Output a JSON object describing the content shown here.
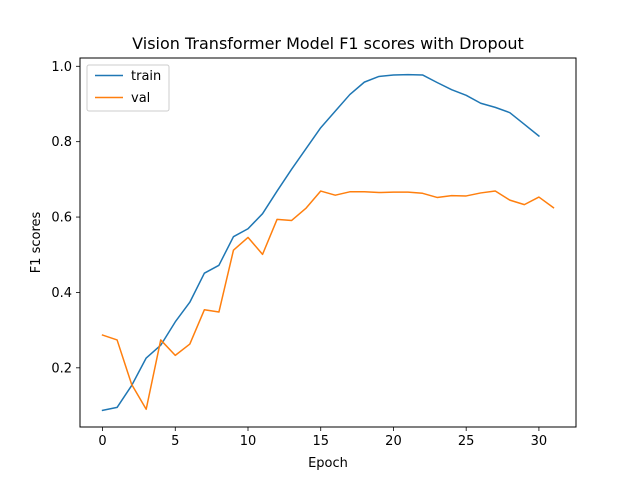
{
  "chart_data": {
    "type": "line",
    "title": "Vision Transformer Model F1 scores with Dropout",
    "xlabel": "Epoch",
    "ylabel": "F1 scores",
    "xlim": [
      -1.55,
      32.55
    ],
    "ylim": [
      0.043,
      1.022
    ],
    "xticks": [
      0,
      5,
      10,
      15,
      20,
      25,
      30
    ],
    "yticks": [
      0.2,
      0.4,
      0.6,
      0.8,
      1.0
    ],
    "ytick_labels": [
      "0.2",
      "0.4",
      "0.6",
      "0.8",
      "1.0"
    ],
    "grid": false,
    "legend": "top-left",
    "series": [
      {
        "name": "train",
        "color": "#1f77b4",
        "x": [
          0,
          1,
          2,
          3,
          4,
          5,
          6,
          7,
          8,
          9,
          10,
          11,
          12,
          13,
          14,
          15,
          16,
          17,
          18,
          19,
          20,
          21,
          22,
          23,
          24,
          25,
          26,
          27,
          28,
          29,
          30
        ],
        "values": [
          0.087,
          0.095,
          0.153,
          0.226,
          0.26,
          0.322,
          0.374,
          0.451,
          0.472,
          0.548,
          0.569,
          0.609,
          0.669,
          0.727,
          0.782,
          0.837,
          0.881,
          0.925,
          0.958,
          0.973,
          0.977,
          0.978,
          0.977,
          0.957,
          0.938,
          0.923,
          0.902,
          0.891,
          0.877,
          0.846,
          0.815
        ]
      },
      {
        "name": "val",
        "color": "#ff7f0e",
        "x": [
          0,
          1,
          2,
          3,
          4,
          5,
          6,
          7,
          8,
          9,
          10,
          11,
          12,
          13,
          14,
          15,
          16,
          17,
          18,
          19,
          20,
          21,
          22,
          23,
          24,
          25,
          26,
          27,
          28,
          29,
          30,
          31
        ],
        "values": [
          0.287,
          0.274,
          0.156,
          0.09,
          0.274,
          0.233,
          0.263,
          0.354,
          0.348,
          0.512,
          0.546,
          0.501,
          0.594,
          0.591,
          0.624,
          0.669,
          0.658,
          0.667,
          0.667,
          0.665,
          0.666,
          0.666,
          0.663,
          0.652,
          0.657,
          0.656,
          0.664,
          0.669,
          0.645,
          0.633,
          0.653,
          0.625
        ]
      }
    ]
  }
}
